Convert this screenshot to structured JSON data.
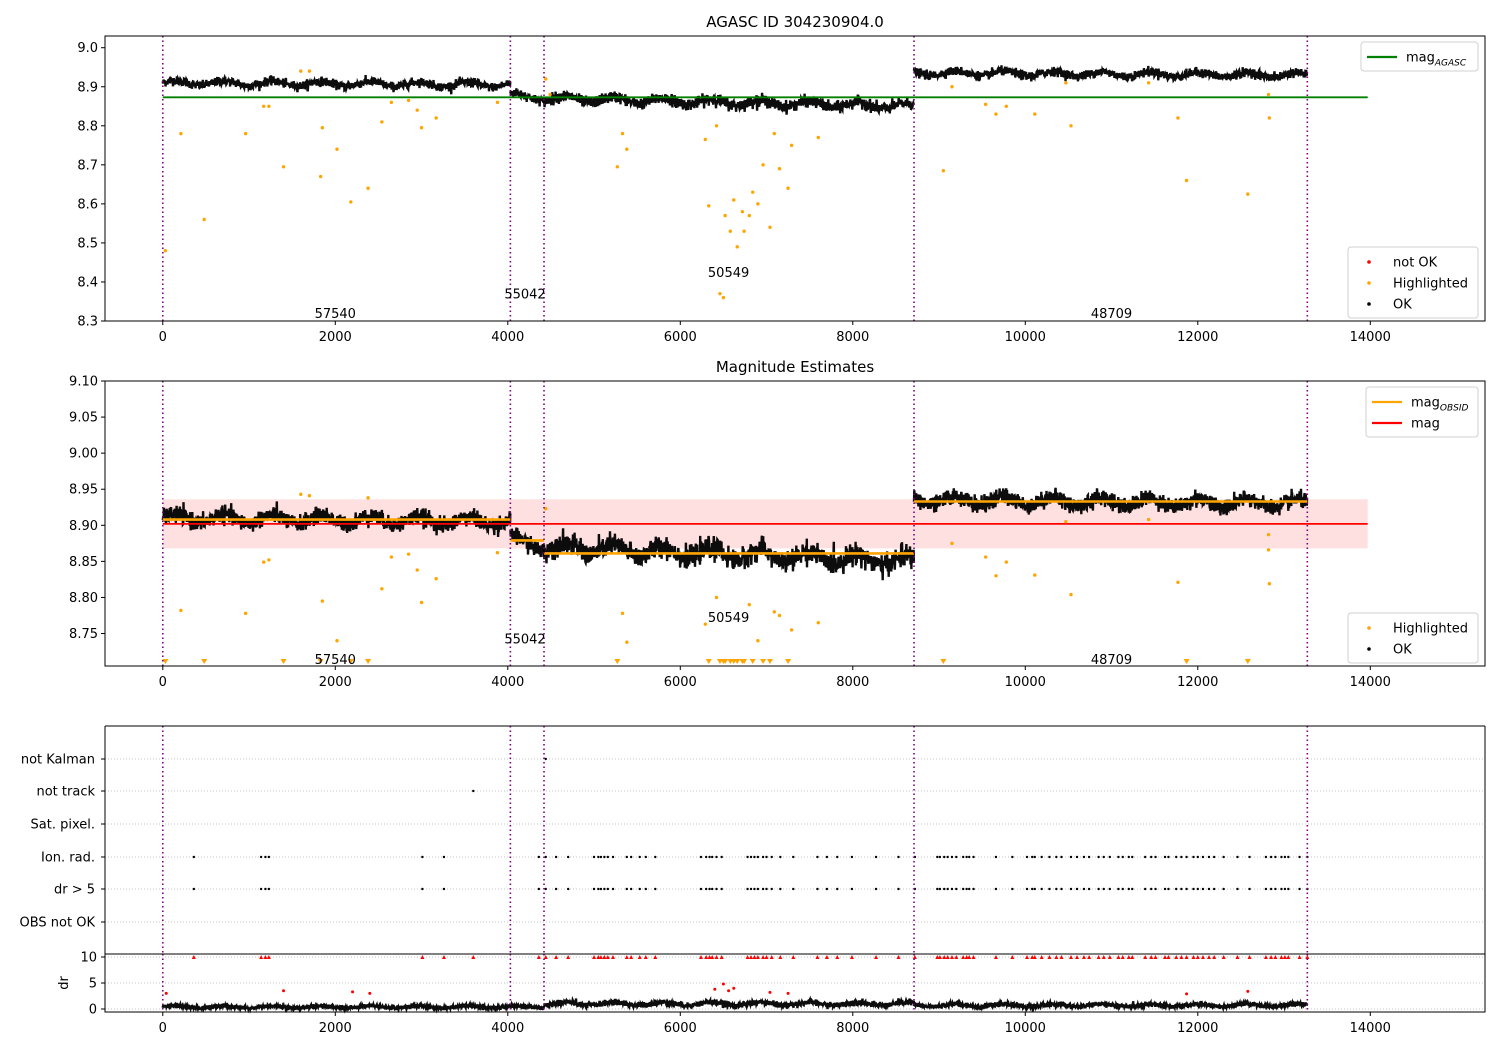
{
  "colors": {
    "ok": "#000000",
    "not_ok": "#ff0000",
    "highlighted": "#ffa500",
    "agasc_line": "#008000",
    "mag_line": "#ff0000",
    "obsid_line": "#ffa500",
    "band": "#ffcccc",
    "obs_boundary": "#800080",
    "grid": "#b0b0b0"
  },
  "chart_data": [
    {
      "type": "scatter",
      "title": "AGASC ID 304230904.0",
      "xlabel": "",
      "ylabel": "",
      "xlim": [
        -670,
        15330
      ],
      "ylim": [
        8.3,
        9.03
      ],
      "xticks": [
        0,
        2000,
        4000,
        6000,
        8000,
        10000,
        12000,
        14000
      ],
      "xtick_labels": [
        "0",
        "2000",
        "4000",
        "6000",
        "8000",
        "10000",
        "12000",
        "14000"
      ],
      "yticks": [
        8.3,
        8.4,
        8.5,
        8.6,
        8.7,
        8.8,
        8.9,
        9.0
      ],
      "ytick_labels": [
        "8.3",
        "8.4",
        "8.5",
        "8.6",
        "8.7",
        "8.8",
        "8.9",
        "9.0"
      ],
      "obs_boundaries": [
        0,
        4030,
        4420,
        8710,
        13270
      ],
      "obs_labels": [
        {
          "x": 2000,
          "y": 8.32,
          "text": "57540"
        },
        {
          "x": 4200,
          "y": 8.37,
          "text": "55042"
        },
        {
          "x": 6560,
          "y": 8.425,
          "text": "50549"
        },
        {
          "x": 11000,
          "y": 8.32,
          "text": "48709"
        }
      ],
      "segments": [
        {
          "x0": 0,
          "x1": 4030,
          "start": 8.91,
          "end": 8.905,
          "noise": 0.01
        },
        {
          "x0": 4030,
          "x1": 4420,
          "start": 8.88,
          "end": 8.87,
          "noise": 0.01
        },
        {
          "x0": 4420,
          "x1": 8710,
          "start": 8.87,
          "end": 8.85,
          "noise": 0.013
        },
        {
          "x0": 8710,
          "x1": 13270,
          "start": 8.935,
          "end": 8.93,
          "noise": 0.01
        }
      ],
      "reference_lines": [
        {
          "label": "magAGASC",
          "y": 8.873,
          "x0": 0,
          "x1": 13970,
          "color": "#008000"
        }
      ],
      "highlighted_points": [
        [
          30,
          8.48
        ],
        [
          210,
          8.78
        ],
        [
          480,
          8.56
        ],
        [
          960,
          8.78
        ],
        [
          1170,
          8.85
        ],
        [
          1230,
          8.85
        ],
        [
          1400,
          8.695
        ],
        [
          1600,
          8.94
        ],
        [
          1700,
          8.94
        ],
        [
          1830,
          8.67
        ],
        [
          1850,
          8.795
        ],
        [
          2020,
          8.74
        ],
        [
          2180,
          8.605
        ],
        [
          2380,
          8.64
        ],
        [
          2540,
          8.81
        ],
        [
          2650,
          8.86
        ],
        [
          2850,
          8.865
        ],
        [
          2950,
          8.84
        ],
        [
          3000,
          8.795
        ],
        [
          3170,
          8.82
        ],
        [
          3880,
          8.86
        ],
        [
          4440,
          8.92
        ],
        [
          4490,
          8.88
        ],
        [
          5270,
          8.695
        ],
        [
          5330,
          8.78
        ],
        [
          5380,
          8.74
        ],
        [
          6290,
          8.765
        ],
        [
          6330,
          8.595
        ],
        [
          6420,
          8.8
        ],
        [
          6460,
          8.37
        ],
        [
          6500,
          8.36
        ],
        [
          6520,
          8.57
        ],
        [
          6580,
          8.53
        ],
        [
          6620,
          8.61
        ],
        [
          6660,
          8.49
        ],
        [
          6720,
          8.58
        ],
        [
          6740,
          8.53
        ],
        [
          6800,
          8.57
        ],
        [
          6840,
          8.63
        ],
        [
          6900,
          8.6
        ],
        [
          6960,
          8.7
        ],
        [
          7040,
          8.54
        ],
        [
          7090,
          8.78
        ],
        [
          7150,
          8.69
        ],
        [
          7250,
          8.64
        ],
        [
          7290,
          8.75
        ],
        [
          7600,
          8.77
        ],
        [
          9050,
          8.685
        ],
        [
          9150,
          8.9
        ],
        [
          9540,
          8.855
        ],
        [
          9660,
          8.83
        ],
        [
          9780,
          8.85
        ],
        [
          10110,
          8.83
        ],
        [
          10530,
          8.8
        ],
        [
          10470,
          8.91
        ],
        [
          11430,
          8.91
        ],
        [
          11770,
          8.82
        ],
        [
          11870,
          8.66
        ],
        [
          12580,
          8.625
        ],
        [
          12820,
          8.88
        ],
        [
          12830,
          8.82
        ]
      ],
      "not_ok_points": [],
      "legends": [
        {
          "items": [
            {
              "label": "mag",
              "sub": "AGASC",
              "kind": "line",
              "color": "#008000"
            }
          ]
        },
        {
          "items": [
            {
              "label": "not OK",
              "kind": "marker",
              "color": "#ff0000"
            },
            {
              "label": "Highlighted",
              "kind": "marker",
              "color": "#ffa500"
            },
            {
              "label": "OK",
              "kind": "marker",
              "color": "#000000"
            }
          ]
        }
      ]
    },
    {
      "type": "scatter",
      "title": "Magnitude Estimates",
      "xlabel": "",
      "ylabel": "",
      "xlim": [
        -670,
        15330
      ],
      "ylim": [
        8.705,
        9.1
      ],
      "xticks": [
        0,
        2000,
        4000,
        6000,
        8000,
        10000,
        12000,
        14000
      ],
      "xtick_labels": [
        "0",
        "2000",
        "4000",
        "6000",
        "8000",
        "10000",
        "12000",
        "14000"
      ],
      "yticks": [
        8.75,
        8.8,
        8.85,
        8.9,
        8.95,
        9.0,
        9.05,
        9.1
      ],
      "ytick_labels": [
        "8.75",
        "8.80",
        "8.85",
        "8.90",
        "8.95",
        "9.00",
        "9.05",
        "9.10"
      ],
      "obs_boundaries": [
        0,
        4030,
        4420,
        8710,
        13270
      ],
      "obs_labels": [
        {
          "x": 2000,
          "y": 8.715,
          "text": "57540"
        },
        {
          "x": 4200,
          "y": 8.743,
          "text": "55042"
        },
        {
          "x": 6560,
          "y": 8.773,
          "text": "50549"
        },
        {
          "x": 11000,
          "y": 8.715,
          "text": "48709"
        }
      ],
      "segments": [
        {
          "x0": 0,
          "x1": 4030,
          "start": 8.91,
          "end": 8.905,
          "noise": 0.01
        },
        {
          "x0": 4030,
          "x1": 4420,
          "start": 8.88,
          "end": 8.87,
          "noise": 0.01
        },
        {
          "x0": 4420,
          "x1": 8710,
          "start": 8.87,
          "end": 8.85,
          "noise": 0.013
        },
        {
          "x0": 8710,
          "x1": 13270,
          "start": 8.935,
          "end": 8.93,
          "noise": 0.01
        }
      ],
      "band": {
        "y0": 8.868,
        "y1": 8.936,
        "x0": 0,
        "x1": 13970
      },
      "reference_lines": [
        {
          "label": "mag",
          "y": 8.902,
          "x0": 0,
          "x1": 13970,
          "color": "#ff0000"
        }
      ],
      "obsid_means": [
        {
          "x0": 0,
          "x1": 4030,
          "y": 8.908
        },
        {
          "x0": 4030,
          "x1": 4420,
          "y": 8.879
        },
        {
          "x0": 4420,
          "x1": 8710,
          "y": 8.861
        },
        {
          "x0": 8710,
          "x1": 13270,
          "y": 8.933
        }
      ],
      "highlighted_points": [
        [
          210,
          8.782
        ],
        [
          960,
          8.778
        ],
        [
          1170,
          8.849
        ],
        [
          1230,
          8.852
        ],
        [
          1600,
          8.943
        ],
        [
          1700,
          8.941
        ],
        [
          1850,
          8.795
        ],
        [
          2020,
          8.74
        ],
        [
          2380,
          8.938
        ],
        [
          2540,
          8.812
        ],
        [
          2650,
          8.856
        ],
        [
          2850,
          8.86
        ],
        [
          2950,
          8.838
        ],
        [
          3000,
          8.793
        ],
        [
          3170,
          8.826
        ],
        [
          3880,
          8.862
        ],
        [
          4440,
          8.923
        ],
        [
          5330,
          8.778
        ],
        [
          5380,
          8.738
        ],
        [
          6290,
          8.763
        ],
        [
          6420,
          8.8
        ],
        [
          6800,
          8.79
        ],
        [
          6900,
          8.74
        ],
        [
          7090,
          8.78
        ],
        [
          7150,
          8.775
        ],
        [
          7290,
          8.755
        ],
        [
          7600,
          8.765
        ],
        [
          9150,
          8.875
        ],
        [
          9540,
          8.856
        ],
        [
          9660,
          8.83
        ],
        [
          9780,
          8.849
        ],
        [
          10110,
          8.831
        ],
        [
          10530,
          8.804
        ],
        [
          10470,
          8.905
        ],
        [
          11430,
          8.908
        ],
        [
          11770,
          8.821
        ],
        [
          12820,
          8.887
        ],
        [
          12830,
          8.819
        ],
        [
          12820,
          8.866
        ]
      ],
      "lower_limit_markers": [
        30,
        480,
        1400,
        1830,
        2180,
        2380,
        5270,
        6330,
        6460,
        6500,
        6520,
        6580,
        6620,
        6660,
        6720,
        6740,
        6840,
        6960,
        7040,
        7250,
        9050,
        11870,
        12580
      ],
      "legends": [
        {
          "items": [
            {
              "label": "mag",
              "sub": "OBSID",
              "kind": "line",
              "color": "#ffa500"
            },
            {
              "label": "mag",
              "kind": "line",
              "color": "#ff0000"
            }
          ]
        },
        {
          "items": [
            {
              "label": "Highlighted",
              "kind": "marker",
              "color": "#ffa500"
            },
            {
              "label": "OK",
              "kind": "marker",
              "color": "#000000"
            }
          ]
        }
      ]
    },
    {
      "type": "scatter",
      "title": "",
      "xlabel": "",
      "ylabel": "",
      "xlim": [
        -670,
        15330
      ],
      "categories": [
        "not Kalman",
        "not track",
        "Sat. pixel.",
        "Ion. rad.",
        "dr > 5",
        "OBS not OK"
      ],
      "obs_boundaries": [
        0,
        4030,
        4420,
        8710,
        13270
      ],
      "flag_points": {
        "not Kalman": [
          4440
        ],
        "not track": [
          3600
        ],
        "Sat. pixel.": [],
        "Ion. rad.": [
          360,
          1140,
          1190,
          1230,
          3010,
          3260,
          4360,
          4440,
          4560,
          4700,
          5000,
          5050,
          5080,
          5120,
          5160,
          5220,
          5380,
          5430,
          5530,
          5600,
          5710,
          6240,
          6300,
          6340,
          6370,
          6420,
          6480,
          6780,
          6820,
          6860,
          6900,
          6960,
          7000,
          7060,
          7160,
          7310,
          7590,
          7700,
          7820,
          7990,
          8270,
          8530,
          8720,
          8980,
          9010,
          9060,
          9100,
          9150,
          9200,
          9280,
          9320,
          9350,
          9400,
          9660,
          9850,
          10020,
          10080,
          10110,
          10190,
          10280,
          10360,
          10420,
          10530,
          10600,
          10680,
          10740,
          10850,
          10910,
          10980,
          11080,
          11130,
          11200,
          11240,
          11390,
          11460,
          11510,
          11620,
          11660,
          11750,
          11810,
          11870,
          11950,
          12000,
          12060,
          12130,
          12190,
          12300,
          12460,
          12600,
          12790,
          12850,
          12900,
          12970,
          13010,
          13050,
          13180,
          13270
        ],
        "dr > 5": [
          360,
          1140,
          1190,
          1230,
          3010,
          3260,
          4360,
          4440,
          4560,
          4700,
          5000,
          5050,
          5080,
          5120,
          5160,
          5220,
          5380,
          5430,
          5530,
          5600,
          5710,
          6240,
          6300,
          6340,
          6370,
          6420,
          6480,
          6780,
          6820,
          6860,
          6900,
          6960,
          7000,
          7060,
          7160,
          7310,
          7590,
          7700,
          7820,
          7990,
          8270,
          8530,
          8720,
          8980,
          9010,
          9060,
          9100,
          9150,
          9200,
          9280,
          9320,
          9350,
          9400,
          9660,
          9850,
          10020,
          10080,
          10110,
          10190,
          10280,
          10360,
          10420,
          10530,
          10600,
          10680,
          10740,
          10850,
          10910,
          10980,
          11080,
          11130,
          11200,
          11240,
          11390,
          11460,
          11510,
          11620,
          11660,
          11750,
          11810,
          11870,
          11950,
          12000,
          12060,
          12130,
          12190,
          12300,
          12460,
          12600,
          12790,
          12850,
          12900,
          12970,
          13010,
          13050,
          13180,
          13270
        ],
        "OBS not OK": []
      }
    },
    {
      "type": "scatter",
      "title": "",
      "xlabel": "",
      "ylabel": "dr",
      "xlim": [
        -670,
        15330
      ],
      "ylim": [
        0,
        10
      ],
      "yticks": [
        0,
        5,
        10
      ],
      "ytick_labels": [
        "0",
        "5",
        "10"
      ],
      "xticks": [
        0,
        2000,
        4000,
        6000,
        8000,
        10000,
        12000,
        14000
      ],
      "xtick_labels": [
        "0",
        "2000",
        "4000",
        "6000",
        "8000",
        "10000",
        "12000",
        "14000"
      ],
      "obs_boundaries": [
        0,
        4030,
        4420,
        8710,
        13270
      ],
      "segments": [
        {
          "x0": 0,
          "x1": 4420,
          "start": 0.4,
          "end": 0.4,
          "noise": 0.35
        },
        {
          "x0": 4420,
          "x1": 8710,
          "start": 1.0,
          "end": 1.0,
          "noise": 0.5
        },
        {
          "x0": 8710,
          "x1": 13270,
          "start": 0.7,
          "end": 0.7,
          "noise": 0.4
        }
      ],
      "clipped_points": [
        360,
        1140,
        1190,
        1230,
        3010,
        3260,
        3600,
        4360,
        4440,
        4560,
        4700,
        5000,
        5050,
        5080,
        5120,
        5160,
        5220,
        5380,
        5430,
        5530,
        5600,
        5710,
        6240,
        6300,
        6340,
        6370,
        6420,
        6480,
        6780,
        6820,
        6860,
        6900,
        6960,
        7000,
        7060,
        7160,
        7310,
        7590,
        7700,
        7820,
        7990,
        8270,
        8530,
        8720,
        8980,
        9010,
        9060,
        9100,
        9150,
        9200,
        9280,
        9320,
        9350,
        9400,
        9660,
        9850,
        10020,
        10080,
        10110,
        10190,
        10280,
        10360,
        10420,
        10530,
        10600,
        10680,
        10740,
        10850,
        10910,
        10980,
        11080,
        11130,
        11200,
        11240,
        11390,
        11460,
        11510,
        11620,
        11660,
        11750,
        11810,
        11870,
        11950,
        12000,
        12060,
        12130,
        12190,
        12300,
        12460,
        12600,
        12790,
        12850,
        12900,
        12970,
        13010,
        13050,
        13180,
        13270
      ],
      "not_ok_points": [
        [
          1400,
          3.5
        ],
        [
          2200,
          3.3
        ],
        [
          2400,
          3.0
        ],
        [
          6400,
          3.8
        ],
        [
          6500,
          4.8
        ],
        [
          6560,
          3.5
        ],
        [
          6620,
          4.0
        ],
        [
          7040,
          3.2
        ],
        [
          7250,
          3.0
        ],
        [
          11870,
          2.9
        ],
        [
          12580,
          3.4
        ],
        [
          40,
          3.0
        ]
      ]
    }
  ]
}
